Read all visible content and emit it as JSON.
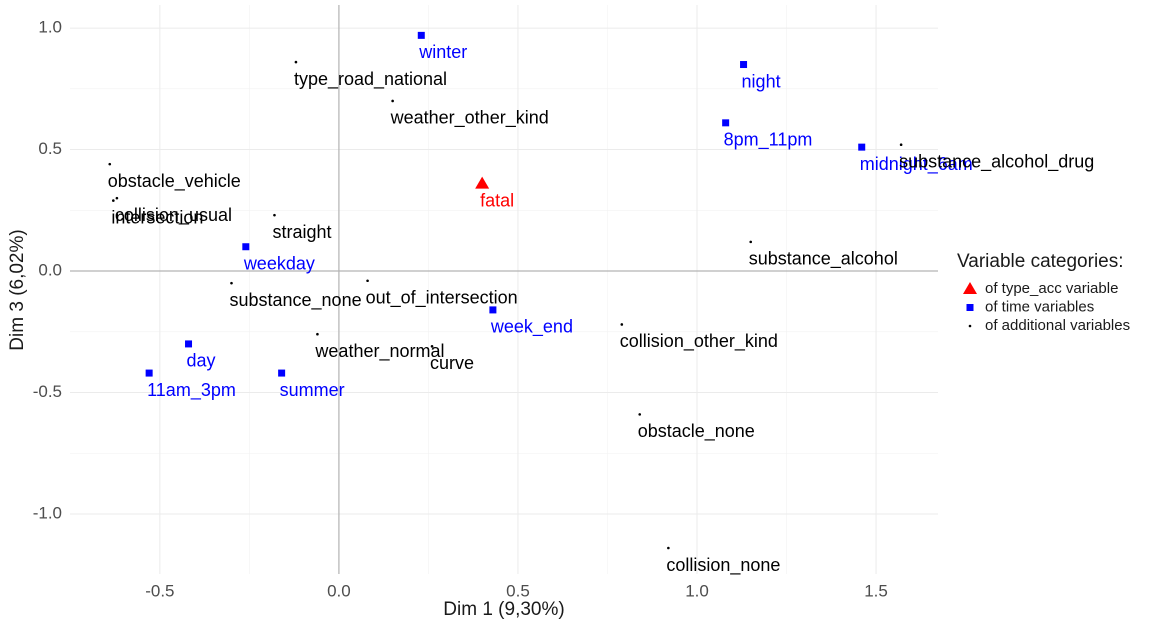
{
  "chart_data": {
    "type": "scatter",
    "x_label": "Dim 1 (9,30%)",
    "y_label": "Dim 3 (6,02%)",
    "legend_title": "Variable categories:",
    "legend_position": "right",
    "grid": true,
    "xlim": [
      -0.751,
      1.673
    ],
    "ylim": [
      -1.247,
      1.095
    ],
    "xticks": [
      -0.5,
      {
        "value": 0,
        "label": "0.0"
      },
      0.5,
      {
        "value": 1,
        "label": "1.0"
      },
      1.5
    ],
    "yticks": [
      {
        "value": -1,
        "label": "-1.0"
      },
      -0.5,
      {
        "value": 0,
        "label": "0.0"
      },
      0.5,
      {
        "value": 1,
        "label": "1.0"
      }
    ],
    "series": [
      {
        "name": "of type_acc variable",
        "color": "#ff0000",
        "shape": "triangle",
        "labels": [
          "fatal"
        ],
        "x": [
          0.4
        ],
        "y": [
          0.36
        ]
      },
      {
        "name": "of time variables",
        "color": "#0000ff",
        "shape": "square",
        "labels": [
          "winter",
          "night",
          "8pm_11pm",
          "midnight_6am",
          "weekday",
          "week_end",
          "day",
          "11am_3pm",
          "summer"
        ],
        "x": [
          0.23,
          1.13,
          1.08,
          1.46,
          -0.26,
          0.43,
          -0.42,
          -0.53,
          -0.16
        ],
        "y": [
          0.97,
          0.85,
          0.61,
          0.51,
          0.1,
          -0.16,
          -0.3,
          -0.42,
          -0.42
        ]
      },
      {
        "name": "of additional variables",
        "color": "#000000",
        "shape": "dot",
        "labels": [
          "type_road_national",
          "weather_other_kind",
          "substance_alcohol_drug",
          "obstacle_vehicle",
          "collision_usual",
          "intersection",
          "straight",
          "out_of_intersection",
          "substance_alcohol",
          "substance_none",
          "weather_normal",
          "curve",
          "collision_other_kind",
          "obstacle_none",
          "collision_none"
        ],
        "x": [
          -0.12,
          0.15,
          1.57,
          -0.64,
          -0.62,
          -0.63,
          -0.18,
          0.08,
          1.15,
          -0.3,
          -0.06,
          0.26,
          0.79,
          0.84,
          0.92
        ],
        "y": [
          0.86,
          0.7,
          0.52,
          0.44,
          0.3,
          0.29,
          0.23,
          -0.04,
          0.12,
          -0.05,
          -0.26,
          -0.31,
          -0.22,
          -0.59,
          -1.14
        ]
      }
    ]
  }
}
